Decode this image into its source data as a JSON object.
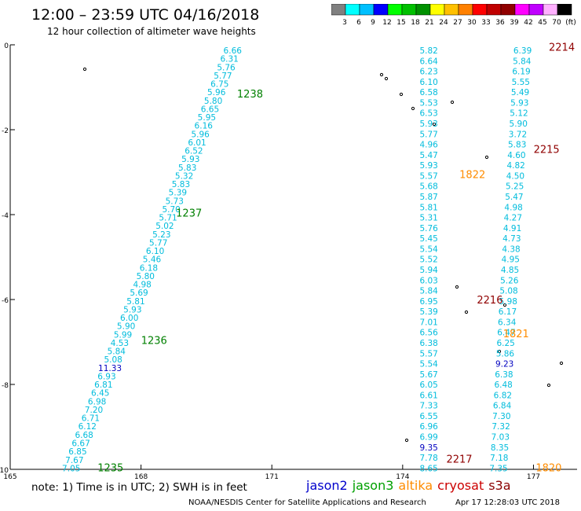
{
  "header": {
    "title": "12:00 – 23:59 UTC 04/16/2018",
    "subtitle": "12 hour collection of altimeter wave heights"
  },
  "colorbar": {
    "colors": [
      "#808080",
      "#00ffff",
      "#00c0ff",
      "#0000ff",
      "#00ff00",
      "#00c000",
      "#009000",
      "#ffff00",
      "#ffc000",
      "#ff8000",
      "#ff0000",
      "#c00000",
      "#900000",
      "#ff00ff",
      "#c000ff",
      "#ffb0ff",
      "#000000"
    ],
    "labels": [
      "3",
      "6",
      "9",
      "12",
      "15",
      "18",
      "21",
      "24",
      "27",
      "30",
      "33",
      "36",
      "39",
      "42",
      "45",
      "70",
      "(ft)"
    ]
  },
  "chart_data": {
    "type": "scatter",
    "title": "12:00 – 23:59 UTC 04/16/2018",
    "subtitle": "12 hour collection of altimeter wave heights",
    "xlim": [
      165,
      178
    ],
    "ylim": [
      -10,
      0
    ],
    "x_ticks": [
      "165",
      "168",
      "171",
      "174",
      "177"
    ],
    "x_tick_values": [
      165,
      168,
      171,
      174,
      177
    ],
    "y_ticks": [
      "0",
      "-2",
      "-4",
      "-6",
      "-8",
      "-10"
    ],
    "y_tick_values": [
      0,
      -2,
      -4,
      -6,
      -8,
      -10
    ],
    "series": [
      {
        "name": "jason3",
        "color": "#00bcdc",
        "start": [
          170.1,
          -0.13
        ],
        "end": [
          166.4,
          -9.97
        ],
        "values": [
          "6.66",
          "6.31",
          "5.76",
          "5.77",
          "6.75",
          "5.96",
          "5.80",
          "6.65",
          "5.95",
          "6.16",
          "5.96",
          "6.01",
          "6.52",
          "5.93",
          "5.83",
          "5.32",
          "5.83",
          "5.39",
          "5.73",
          "5.70",
          "5.71",
          "5.02",
          "5.23",
          "5.77",
          "6.10",
          "5.46",
          "6.18",
          "5.80",
          "4.98",
          "5.69",
          "5.81",
          "5.93",
          "6.00",
          "5.90",
          "5.99",
          "4.53",
          "5.84",
          "5.08",
          "11.33",
          "6.93",
          "6.81",
          "6.45",
          "6.98",
          "7.20",
          "6.71",
          "6.12",
          "6.68",
          "6.67",
          "6.85",
          "7.67",
          "7.05"
        ],
        "value_colors": {
          "11.33": "#0000c0"
        }
      },
      {
        "name": "jason3",
        "color": "#00bcdc",
        "start": [
          174.6,
          -0.13
        ],
        "end": [
          174.6,
          -9.97
        ],
        "values": [
          "5.82",
          "6.64",
          "6.23",
          "6.10",
          "6.58",
          "5.53",
          "6.53",
          "5.93",
          "5.77",
          "4.96",
          "5.47",
          "5.93",
          "5.57",
          "5.68",
          "5.87",
          "5.81",
          "5.31",
          "5.76",
          "5.45",
          "5.54",
          "5.52",
          "5.94",
          "6.03",
          "5.84",
          "6.95",
          "5.39",
          "7.01",
          "6.56",
          "6.38",
          "5.57",
          "5.54",
          "5.67",
          "6.05",
          "6.61",
          "7.33",
          "6.55",
          "6.96",
          "6.99",
          "9.35",
          "7.78",
          "8.65"
        ],
        "value_colors": {
          "9.35": "#0000c0"
        }
      },
      {
        "name": "jason3",
        "color": "#00bcdc",
        "start": [
          176.75,
          -0.13
        ],
        "end": [
          176.2,
          -9.97
        ],
        "values": [
          "6.39",
          "5.84",
          "6.19",
          "5.55",
          "5.49",
          "5.93",
          "5.12",
          "5.90",
          "3.72",
          "5.83",
          "4.60",
          "4.82",
          "4.50",
          "5.25",
          "5.47",
          "4.98",
          "4.27",
          "4.91",
          "4.73",
          "4.38",
          "4.95",
          "4.85",
          "5.26",
          "5.08",
          "5.98",
          "6.17",
          "6.34",
          "6.47",
          "6.25",
          "5.86",
          "9.23",
          "6.38",
          "6.48",
          "6.82",
          "6.84",
          "7.30",
          "7.32",
          "7.03",
          "8.35",
          "7.18",
          "7.35"
        ],
        "value_colors": {
          "9.23": "#0000c0"
        }
      }
    ],
    "annotations": [
      {
        "text": "1238",
        "x": 170.5,
        "y": -1.15,
        "color": "#008000"
      },
      {
        "text": "1237",
        "x": 169.1,
        "y": -3.95,
        "color": "#008000"
      },
      {
        "text": "1236",
        "x": 168.3,
        "y": -6.95,
        "color": "#008000"
      },
      {
        "text": "1235",
        "x": 167.3,
        "y": -9.95,
        "color": "#008000"
      },
      {
        "text": "2214",
        "x": 177.65,
        "y": -0.05,
        "color": "#900000"
      },
      {
        "text": "2215",
        "x": 177.3,
        "y": -2.45,
        "color": "#900000"
      },
      {
        "text": "2216",
        "x": 176.0,
        "y": -6.0,
        "color": "#900000"
      },
      {
        "text": "2217",
        "x": 175.3,
        "y": -9.75,
        "color": "#900000"
      },
      {
        "text": "1822",
        "x": 175.6,
        "y": -3.05,
        "color": "#ff8c00"
      },
      {
        "text": "1821",
        "x": 176.6,
        "y": -6.8,
        "color": "#ff8c00"
      },
      {
        "text": "1820",
        "x": 177.35,
        "y": -9.95,
        "color": "#ff8c00"
      }
    ],
    "grid": false
  },
  "footer": {
    "note": "note: 1) Time is in UTC; 2) SWH is in feet",
    "satellites": [
      {
        "name": "jason2",
        "color": "#0000cc"
      },
      {
        "name": "jason3",
        "color": "#00a000"
      },
      {
        "name": "altika",
        "color": "#ff8c00"
      },
      {
        "name": "cryosat",
        "color": "#cc0000"
      },
      {
        "name": "s3a",
        "color": "#8b0000"
      }
    ],
    "credit": "NOAA/NESDIS Center for Satellite Applications and Research",
    "timestamp": "Apr 17 12:28:03 UTC 2018"
  }
}
